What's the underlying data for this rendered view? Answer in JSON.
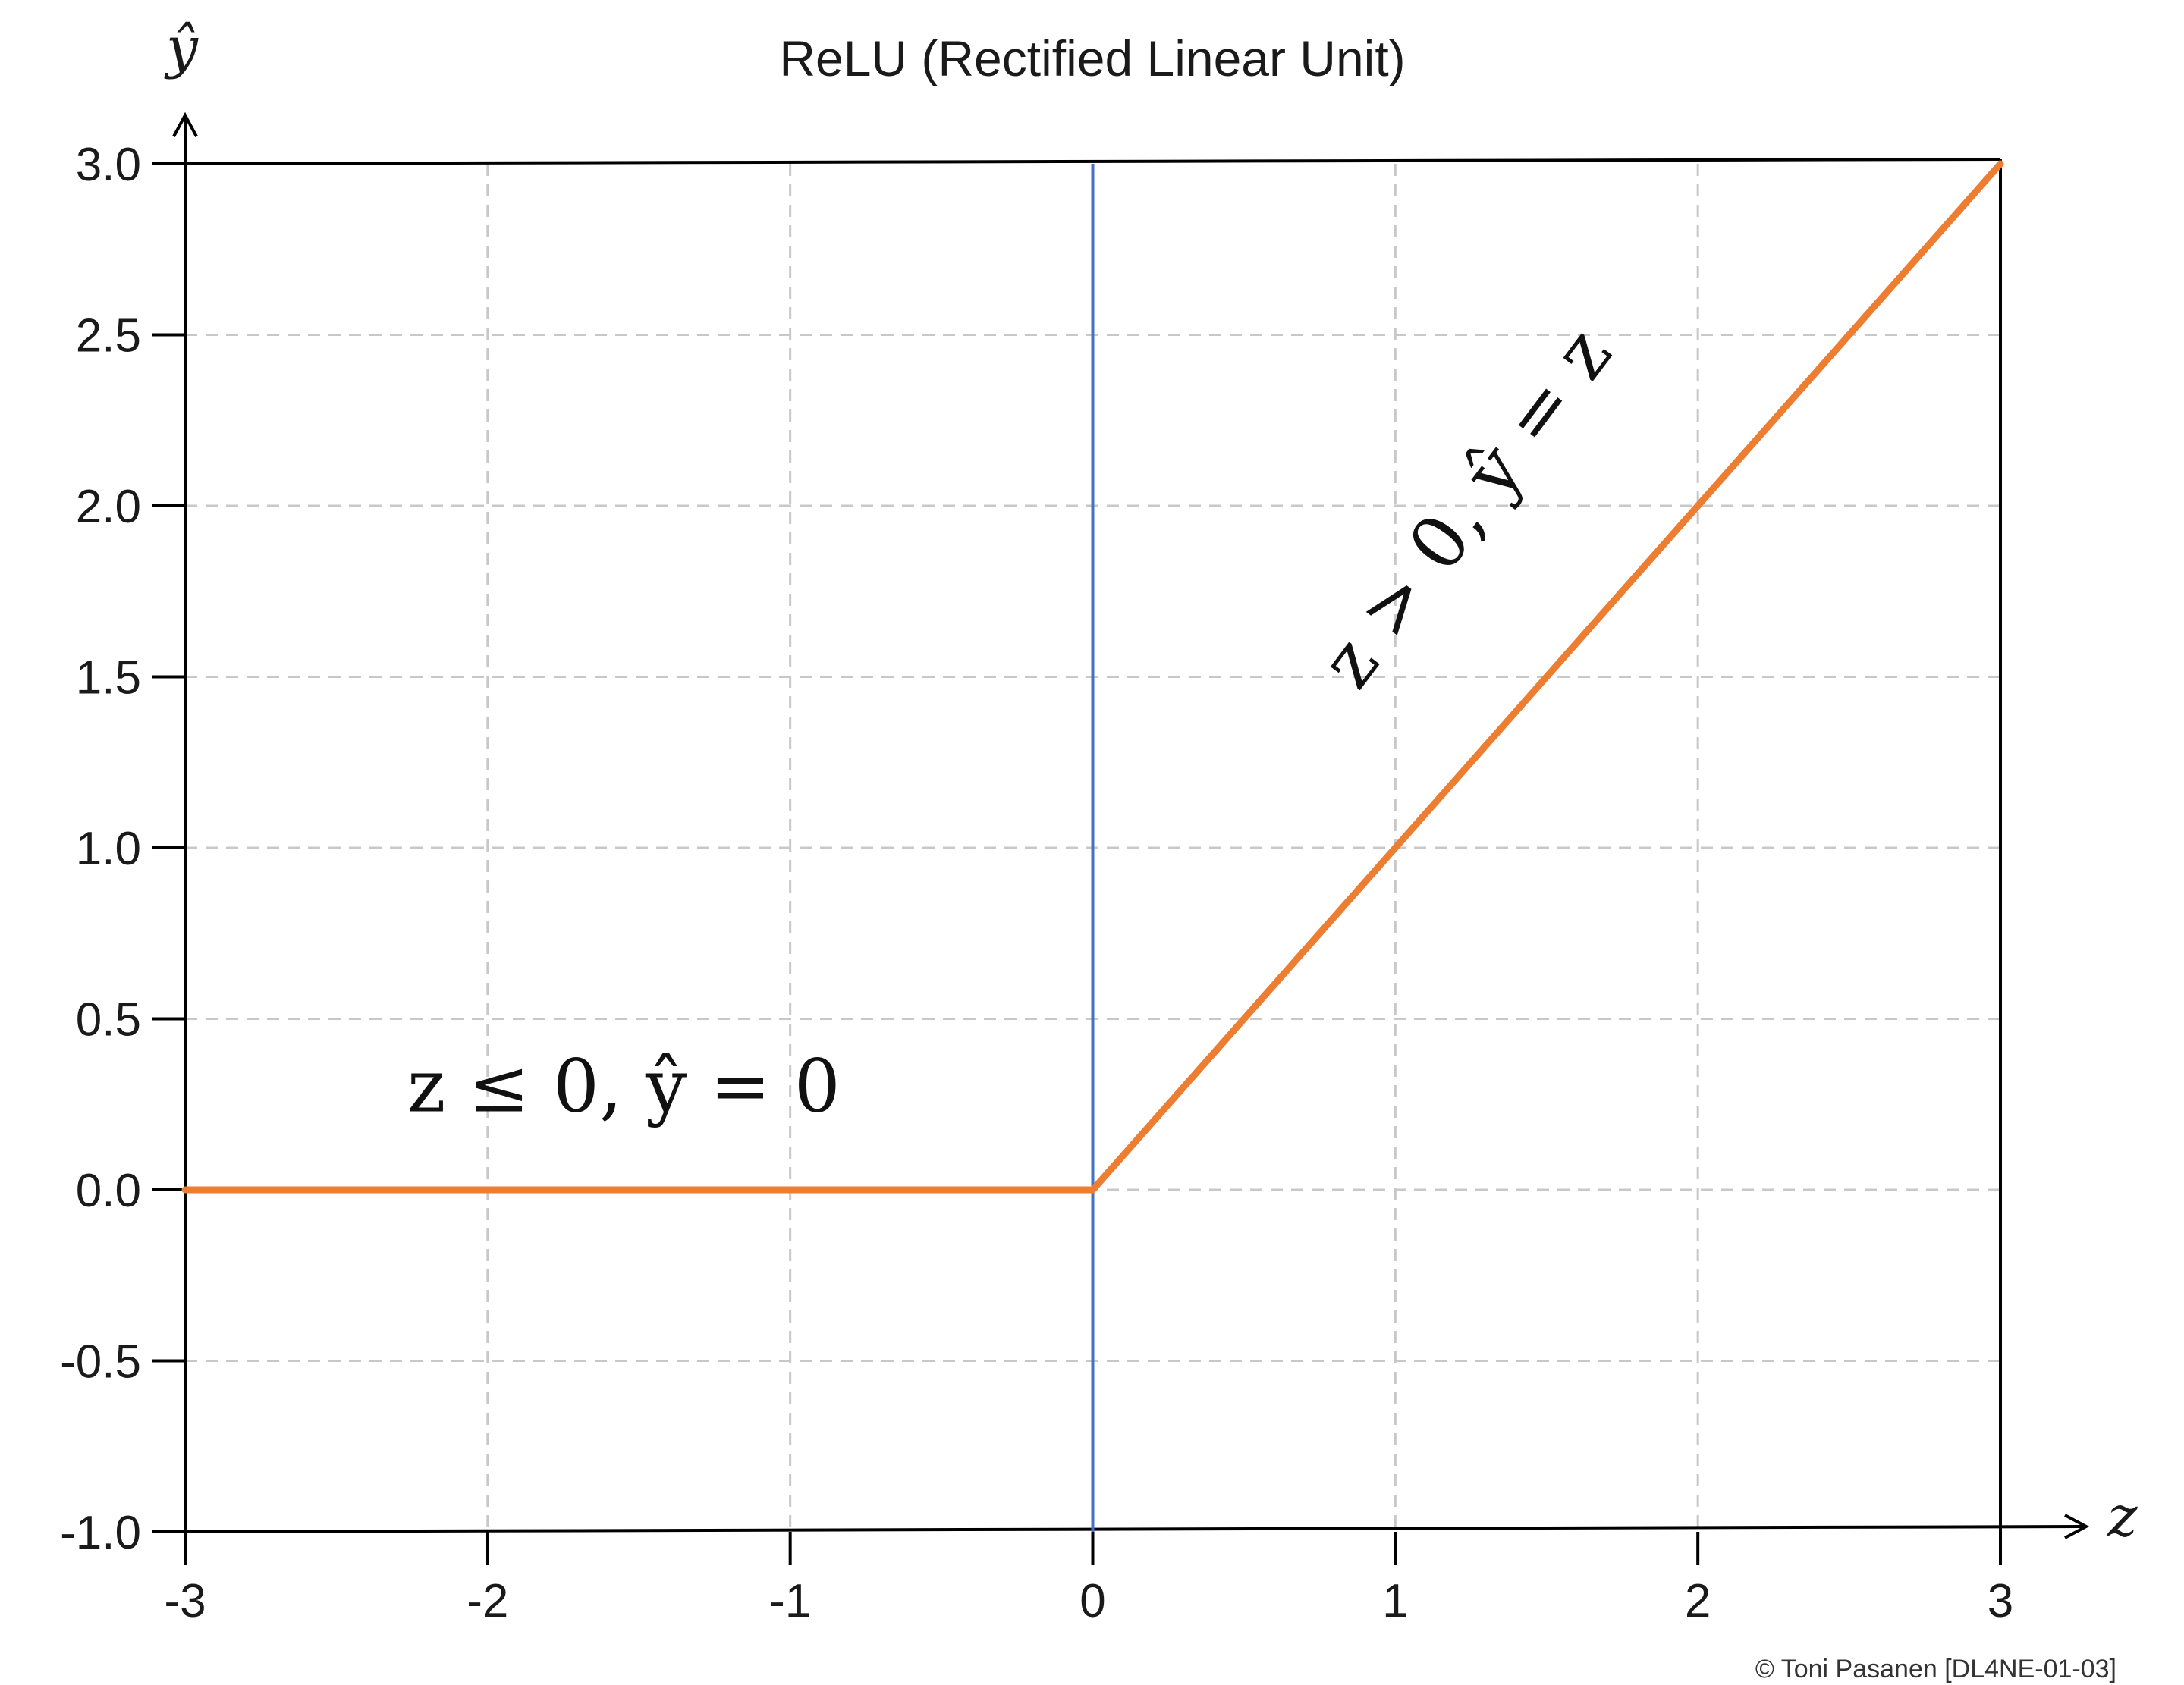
{
  "chart_data": {
    "type": "line",
    "title": "ReLU (Rectified Linear Unit)",
    "xlabel": "z",
    "ylabel": "ŷ",
    "xlim": [
      -3,
      3
    ],
    "ylim": [
      -1.0,
      3.0
    ],
    "x_ticks": [
      "-3",
      "-2",
      "-1",
      "0",
      "1",
      "2",
      "3"
    ],
    "x_tick_values": [
      -3,
      -2,
      -1,
      0,
      1,
      2,
      3
    ],
    "y_ticks": [
      "-1.0",
      "-0.5",
      "0.0",
      "0.5",
      "1.0",
      "1.5",
      "2.0",
      "2.5",
      "3.0"
    ],
    "y_tick_values": [
      -1.0,
      -0.5,
      0.0,
      0.5,
      1.0,
      1.5,
      2.0,
      2.5,
      3.0
    ],
    "grid": true,
    "series": [
      {
        "x": [
          -3,
          0,
          3
        ],
        "y": [
          0,
          0,
          3
        ],
        "color": "#ED7D31"
      }
    ],
    "vertical_line": {
      "x": 0,
      "color": "#4472C4"
    },
    "annotations": [
      {
        "text": "z ≤ 0, ŷ = 0",
        "x": -1.55,
        "y": 0.23
      },
      {
        "text": "z > 0, ŷ = z",
        "x": 1.3,
        "y": 1.95,
        "angle": -53
      }
    ],
    "copyright": "© Toni Pasanen [DL4NE-01-03]"
  }
}
